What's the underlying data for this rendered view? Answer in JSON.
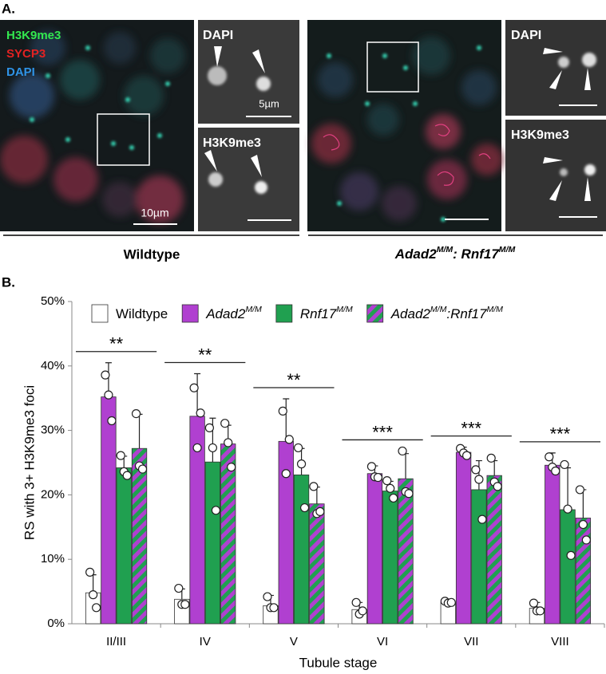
{
  "panel_a": {
    "label": "A.",
    "wildtype": {
      "merge_legend": [
        "H3K9me3",
        "SYCP3",
        "DAPI"
      ],
      "merge_legend_colors": [
        "#33e84f",
        "#e32222",
        "#2f93e6"
      ],
      "merge_scale": "10µm",
      "insets": [
        {
          "label": "DAPI",
          "scale": "5µm"
        },
        {
          "label": "H3K9me3"
        }
      ],
      "caption": "Wildtype"
    },
    "mutant": {
      "insets": [
        {
          "label": "DAPI"
        },
        {
          "label": "H3K9me3"
        }
      ],
      "caption": [
        "Adad2",
        "M/M",
        ": Rnf17",
        "M/M"
      ]
    }
  },
  "chart_data": {
    "type": "bar",
    "panel_label": "B.",
    "y_label": "RS with 3+ H3K9me3 foci",
    "x_label": "Tubule stage",
    "categories": [
      "II/III",
      "IV",
      "V",
      "VI",
      "VII",
      "VIII"
    ],
    "ylim": [
      0,
      50
    ],
    "yticks": [
      {
        "value": 0,
        "label": "0%"
      },
      {
        "value": 10,
        "label": "10%"
      },
      {
        "value": 20,
        "label": "20%"
      },
      {
        "value": 30,
        "label": "30%"
      },
      {
        "value": 40,
        "label": "40%"
      },
      {
        "value": 50,
        "label": "50%"
      }
    ],
    "series": [
      {
        "name": [
          "Wildtype"
        ],
        "color": "#ffffff",
        "values": [
          4.8,
          3.8,
          2.8,
          2.2,
          3.3,
          2.4
        ],
        "errors": [
          2.8,
          1.6,
          1.6,
          1.1,
          0.5,
          0.9
        ],
        "points": [
          [
            8,
            4.5,
            2.5
          ],
          [
            5.5,
            3,
            3
          ],
          [
            4.2,
            2.5,
            2.5
          ],
          [
            3.3,
            1.5,
            2
          ],
          [
            3.5,
            3.2,
            3.3
          ],
          [
            3.2,
            2,
            2
          ]
        ]
      },
      {
        "name": [
          "Adad2",
          "M/M"
        ],
        "color": "#b040d0",
        "values": [
          35.2,
          32.2,
          28.3,
          23.3,
          26.6,
          24.6
        ],
        "errors": [
          5.3,
          6.6,
          6.6,
          1.2,
          0.8,
          1.9
        ],
        "points": [
          [
            38.6,
            35.5,
            31.5
          ],
          [
            36.6,
            27.3,
            32.7
          ],
          [
            33,
            23.3,
            28.6
          ],
          [
            24.4,
            22.8,
            22.7
          ],
          [
            27.2,
            26.5,
            26.1
          ],
          [
            25.9,
            24.3,
            23.7
          ]
        ]
      },
      {
        "name": [
          "Rnf17",
          "M/M"
        ],
        "color": "#20a050",
        "values": [
          24.2,
          25.1,
          23.1,
          20.6,
          20.8,
          17.7
        ],
        "errors": [
          1.8,
          6.8,
          4.1,
          1.5,
          4.5,
          6.5
        ],
        "points": [
          [
            26.1,
            23.6,
            23
          ],
          [
            30.4,
            27.3,
            17.6
          ],
          [
            27.3,
            24.8,
            18
          ],
          [
            22.2,
            21,
            19.5
          ],
          [
            23.9,
            22.4,
            16.2
          ],
          [
            24.7,
            17.8,
            10.6
          ]
        ]
      },
      {
        "name": [
          "Adad2",
          "M/M",
          ":Rnf17",
          "M/M"
        ],
        "color": [
          "#b040d0",
          "#20a050"
        ],
        "values": [
          27.2,
          27.9,
          18.6,
          22.5,
          23.0,
          16.4
        ],
        "errors": [
          5.3,
          2.9,
          2.6,
          3.9,
          2.3,
          4.4
        ],
        "points": [
          [
            32.6,
            24.5,
            24
          ],
          [
            31.1,
            28.1,
            24.3
          ],
          [
            21.3,
            17.1,
            17.4
          ],
          [
            26.8,
            20.5,
            20.2
          ],
          [
            25.7,
            22,
            21.3
          ],
          [
            20.8,
            15.4,
            13
          ]
        ]
      }
    ],
    "significance": [
      "**",
      "**",
      "**",
      "***",
      "***",
      "***"
    ]
  }
}
